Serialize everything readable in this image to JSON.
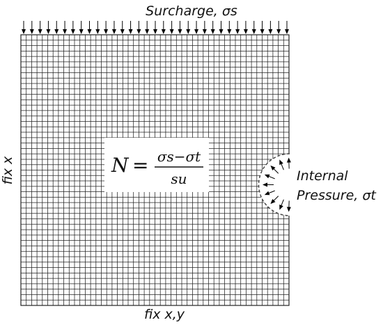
{
  "labels": {
    "top": "Surcharge, σs",
    "left": "fix x",
    "bottom": "fix x,y",
    "internal_line1": "Internal",
    "internal_line2": "Pressure, σt"
  },
  "equation": {
    "lhs": "N",
    "equals": "=",
    "numerator": "σs−σt",
    "denominator": "su"
  },
  "mesh": {
    "columns": 50,
    "rows": 50,
    "line_color": "#222222"
  },
  "colors": {
    "background": "#ffffff",
    "arrow": "#000000",
    "boundary": "#444444"
  }
}
